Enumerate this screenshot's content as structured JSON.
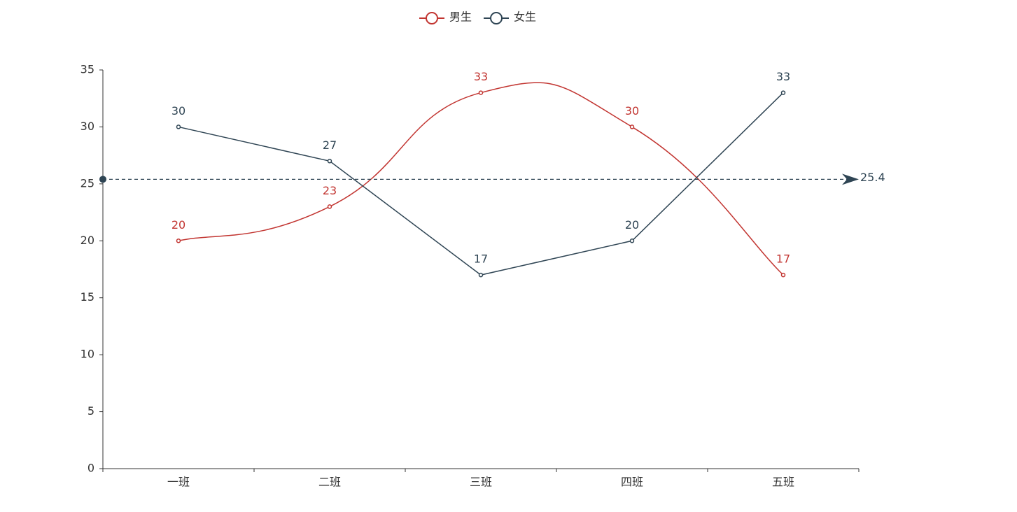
{
  "chart_data": {
    "type": "line",
    "categories": [
      "一班",
      "二班",
      "三班",
      "四班",
      "五班"
    ],
    "series": [
      {
        "name": "男生",
        "color": "#c23531",
        "smooth": true,
        "values": [
          20,
          23,
          33,
          30,
          17
        ]
      },
      {
        "name": "女生",
        "color": "#2f4554",
        "smooth": false,
        "values": [
          30,
          27,
          17,
          20,
          33
        ]
      }
    ],
    "mark_line": {
      "series": 1,
      "value": 25.4
    },
    "ylim": [
      0,
      35
    ],
    "yticks": [
      0,
      5,
      10,
      15,
      20,
      25,
      30,
      35
    ],
    "legend": "top"
  }
}
